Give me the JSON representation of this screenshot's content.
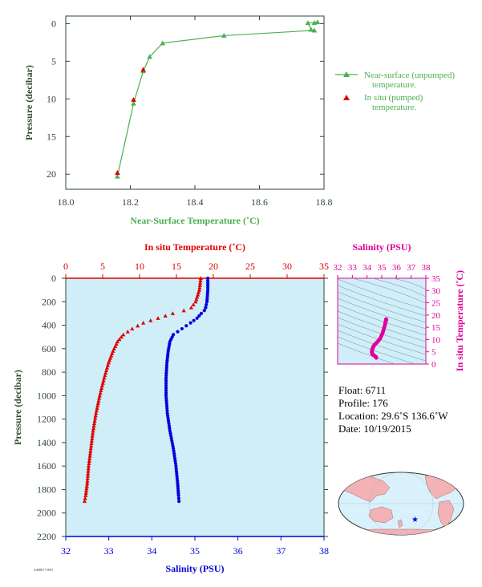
{
  "charts": {
    "top": {
      "type": "line+scatter",
      "xlabel": "Near-Surface Temperature (˚C)",
      "ylabel": "Pressure (decibar)",
      "xlim": [
        18.0,
        18.8
      ],
      "ylim": [
        22,
        -1
      ],
      "xticks": [
        "18.0",
        "18.2",
        "18.4",
        "18.6",
        "18.8"
      ],
      "yticks": [
        "0",
        "5",
        "10",
        "15",
        "20"
      ],
      "legend": [
        {
          "label": "Near-surface (unpumped) temperature.",
          "color": "#4caf50",
          "marker": "open-triangle-line"
        },
        {
          "label": "In situ (pumped) temperature.",
          "color": "#e00000",
          "marker": "filled-triangle"
        }
      ]
    },
    "bottom": {
      "ylabel": "Pressure (decibar)",
      "top_axis_label": "In situ Temperature (˚C)",
      "bottom_axis_label": "Salinity (PSU)",
      "temp_ticks": [
        "0",
        "5",
        "10",
        "15",
        "20",
        "25",
        "30",
        "35"
      ],
      "sal_ticks": [
        "32",
        "33",
        "34",
        "35",
        "36",
        "37",
        "38"
      ],
      "pres_ticks": [
        "0",
        "200",
        "400",
        "600",
        "800",
        "1000",
        "1200",
        "1400",
        "1600",
        "1800",
        "2000",
        "2200"
      ]
    },
    "ts": {
      "xlabel": "Salinity (PSU)",
      "ylabel": "In situ Temperature (˚C)",
      "xticks": [
        "32",
        "33",
        "34",
        "35",
        "36",
        "37",
        "38"
      ],
      "yticks": [
        "0",
        "5",
        "10",
        "15",
        "20",
        "25",
        "30",
        "35"
      ]
    }
  },
  "float_info": {
    "float": "Float:  6711",
    "profile": "Profile:  176",
    "location": "Location:  29.6˚S  136.6˚W",
    "date": "Date:  10/19/2015"
  },
  "footer_id": "A468E17 0091",
  "colors": {
    "green": "#4caf50",
    "red": "#e00000",
    "blue": "#0000dd",
    "magenta": "#e0009a",
    "plot_bg": "#cfeef8",
    "axis_dark": "#2e4a2e"
  },
  "chart_data": [
    {
      "type": "line",
      "name": "near-surface",
      "series": [
        {
          "name": "Near-surface (unpumped) temperature.",
          "x": [
            18.78,
            18.77,
            18.75,
            18.76,
            18.77,
            18.49,
            18.3,
            18.26,
            18.24,
            18.21,
            18.16
          ],
          "y": [
            -0.2,
            -0.1,
            -0.1,
            0.8,
            0.9,
            1.6,
            2.6,
            4.4,
            6.3,
            10.6,
            20.3
          ]
        },
        {
          "name": "In situ (pumped) temperature.",
          "x": [
            18.24,
            18.21,
            18.16
          ],
          "y": [
            6.1,
            10.1,
            19.8
          ]
        }
      ]
    },
    {
      "type": "scatter",
      "name": "profile",
      "series": [
        {
          "name": "In situ Temperature",
          "x": [
            18.3,
            18.1,
            17.6,
            17.0,
            16.0,
            14.5,
            12.5,
            10.5,
            9.0,
            7.8,
            7.0,
            6.4,
            5.8,
            5.2,
            4.6,
            4.1,
            3.7,
            3.4,
            3.1,
            2.9,
            2.7,
            2.55
          ],
          "y": [
            0,
            100,
            200,
            250,
            275,
            300,
            340,
            380,
            430,
            480,
            540,
            620,
            720,
            850,
            1000,
            1150,
            1300,
            1450,
            1600,
            1750,
            1850,
            1900
          ]
        },
        {
          "name": "Salinity",
          "x": [
            35.3,
            35.3,
            35.28,
            35.25,
            35.22,
            35.15,
            35.05,
            34.9,
            34.7,
            34.5,
            34.42,
            34.38,
            34.35,
            34.33,
            34.33,
            34.36,
            34.42,
            34.5,
            34.56,
            34.6,
            34.62,
            34.63
          ],
          "y": [
            0,
            100,
            200,
            250,
            275,
            300,
            340,
            380,
            430,
            480,
            540,
            620,
            720,
            850,
            1000,
            1150,
            1300,
            1450,
            1600,
            1750,
            1850,
            1900
          ]
        }
      ]
    }
  ]
}
